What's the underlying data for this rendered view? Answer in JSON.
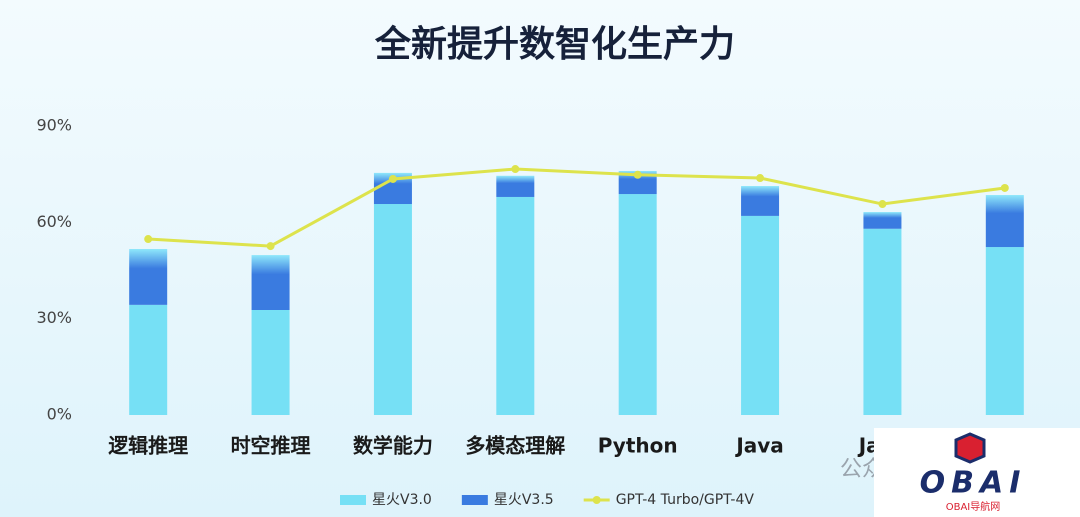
{
  "chart_data": {
    "type": "stacked-bar-line",
    "title": "全新提升数智化生产力",
    "categories": [
      "逻辑推理",
      "时空推理",
      "数学能力",
      "多模态理解",
      "Python",
      "Java",
      "Java",
      null
    ],
    "series": [
      {
        "name": "星火V3.0",
        "color": "#76e0f5",
        "kind": "bar",
        "values": [
          34.3,
          32.7,
          65.7,
          67.9,
          68.8,
          62,
          58,
          52.3
        ]
      },
      {
        "name": "星火V3.5",
        "color": "#3a7be0",
        "kind": "bar",
        "values": [
          17.4,
          17.1,
          9.7,
          6.6,
          7.2,
          9.3,
          5.2,
          16.2
        ]
      },
      {
        "name": "GPT-4 Turbo/GPT-4V",
        "color": "#dde34c",
        "kind": "line",
        "values": [
          54.8,
          52.6,
          73.5,
          76.6,
          74.8,
          73.8,
          65.7,
          70.7
        ]
      }
    ],
    "ylim": [
      0,
      90
    ],
    "yticks": [
      {
        "value": 0,
        "label": "0%"
      },
      {
        "value": 30,
        "label": "30%"
      },
      {
        "value": 60,
        "label": "60%"
      },
      {
        "value": 90,
        "label": "90%"
      }
    ],
    "grid": false,
    "legend": "bottom"
  },
  "watermark": {
    "logo": "OBAI",
    "sub": "OBAI导航网",
    "partial": "公众"
  }
}
